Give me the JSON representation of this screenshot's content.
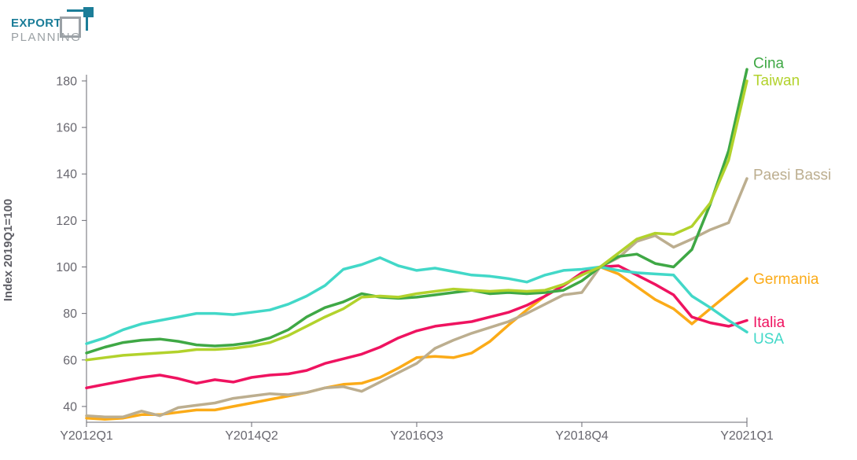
{
  "logo": {
    "line1": "EXPORT",
    "line2": "PLANNING",
    "teal": "#1b7d98",
    "gray": "#9ba1a6"
  },
  "chart_data": {
    "type": "line",
    "title": "",
    "xlabel": "",
    "ylabel": "Index 2019Q1=100",
    "grid": false,
    "legend_position": "right-end-labels",
    "axis_color": "#6a6a72",
    "tick_label_color": "#68676f",
    "ylim": [
      33,
      190
    ],
    "y_ticks": [
      40,
      60,
      80,
      100,
      120,
      140,
      160,
      180
    ],
    "x_tick_indices": [
      0,
      9,
      18,
      27,
      36
    ],
    "x_tick_labels": [
      "Y2012Q1",
      "Y2014Q2",
      "Y2016Q3",
      "Y2018Q4",
      "Y2021Q1"
    ],
    "x": [
      "Y2012Q1",
      "Y2012Q2",
      "Y2012Q3",
      "Y2012Q4",
      "Y2013Q1",
      "Y2013Q2",
      "Y2013Q3",
      "Y2013Q4",
      "Y2014Q1",
      "Y2014Q2",
      "Y2014Q3",
      "Y2014Q4",
      "Y2015Q1",
      "Y2015Q2",
      "Y2015Q3",
      "Y2015Q4",
      "Y2016Q1",
      "Y2016Q2",
      "Y2016Q3",
      "Y2016Q4",
      "Y2017Q1",
      "Y2017Q2",
      "Y2017Q3",
      "Y2017Q4",
      "Y2018Q1",
      "Y2018Q2",
      "Y2018Q3",
      "Y2018Q4",
      "Y2019Q1",
      "Y2019Q2",
      "Y2019Q3",
      "Y2019Q4",
      "Y2020Q1",
      "Y2020Q2",
      "Y2020Q3",
      "Y2020Q4",
      "Y2021Q1"
    ],
    "series": [
      {
        "name": "Germania",
        "color": "#fbab18",
        "label_dy": 1,
        "values": [
          35,
          34.5,
          35,
          36.5,
          36.5,
          37.5,
          38.5,
          38.5,
          40,
          41.5,
          43,
          44.5,
          46,
          48,
          49.5,
          50,
          52.5,
          56.5,
          61,
          61.5,
          61,
          63,
          68,
          75,
          81.5,
          87.5,
          92,
          97,
          100,
          97,
          91.5,
          86,
          82,
          75.5,
          82,
          88.5,
          95
        ]
      },
      {
        "name": "Paesi Bassi",
        "color": "#bcae8f",
        "label_dy": -4,
        "values": [
          36,
          35.5,
          35.5,
          38,
          36,
          39.5,
          40.5,
          41.5,
          43.5,
          44.5,
          45.5,
          45,
          46,
          48,
          48.5,
          46.5,
          50.5,
          54.5,
          58.5,
          65,
          68.5,
          71.5,
          74,
          76.5,
          80,
          84,
          88,
          89,
          100,
          104,
          111,
          113.5,
          108.5,
          112,
          116,
          119,
          138
        ]
      },
      {
        "name": "Italia",
        "color": "#ef1360",
        "label_dy": 3,
        "values": [
          48,
          49.5,
          51,
          52.5,
          53.5,
          52,
          50,
          51.5,
          50.5,
          52.5,
          53.5,
          54,
          55.5,
          58.5,
          60.5,
          62.5,
          65.5,
          69.5,
          72.5,
          74.5,
          75.5,
          76.5,
          78.5,
          80.5,
          83.5,
          87.5,
          92,
          97.5,
          100,
          100.5,
          96.5,
          92.5,
          88,
          78.5,
          76,
          74.5,
          77
        ]
      },
      {
        "name": "USA",
        "color": "#42d8c8",
        "label_dy": 9,
        "values": [
          67,
          69.5,
          73,
          75.5,
          77,
          78.5,
          80,
          80,
          79.5,
          80.5,
          81.5,
          84,
          87.5,
          92,
          99,
          101,
          104,
          100.5,
          98.5,
          99.5,
          98,
          96.5,
          96,
          95,
          93.5,
          96.5,
          98.5,
          99,
          100,
          98.5,
          97.5,
          97,
          96.5,
          87.5,
          82.5,
          77,
          72
        ]
      },
      {
        "name": "Cina",
        "color": "#3fa845",
        "label_dy": -7,
        "values": [
          63,
          65.5,
          67.5,
          68.5,
          69,
          68,
          66.5,
          66,
          66.5,
          67.5,
          69.5,
          73,
          78.5,
          82.5,
          85,
          88.5,
          87,
          86.5,
          87,
          88,
          89,
          90,
          88.5,
          89,
          88.5,
          89,
          90,
          94,
          100,
          104.5,
          105.5,
          101.5,
          100,
          107.5,
          127,
          150,
          185
        ]
      },
      {
        "name": "Taiwan",
        "color": "#b2d22c",
        "label_dy": 0,
        "values": [
          60,
          61,
          62,
          62.5,
          63,
          63.5,
          64.5,
          64.5,
          65,
          66,
          67.5,
          70.5,
          74.5,
          78.5,
          82,
          87,
          87.5,
          87,
          88.5,
          89.5,
          90.5,
          90,
          89.5,
          90,
          89.5,
          90,
          92.5,
          96.5,
          100,
          106,
          112,
          114.5,
          114,
          117.5,
          127.5,
          146,
          180
        ]
      }
    ]
  }
}
